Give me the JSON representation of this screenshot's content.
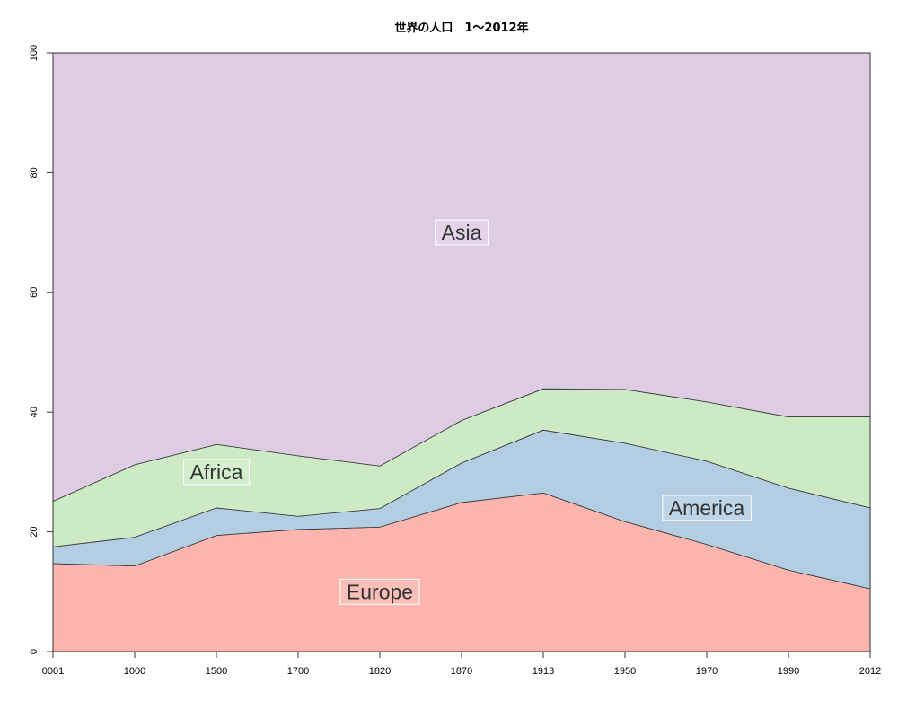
{
  "chart_data": {
    "type": "area",
    "stacked": true,
    "title": "世界の人口　1〜2012年",
    "xlabel": "",
    "ylabel": "",
    "ylim": [
      0,
      100
    ],
    "y_ticks": [
      "0",
      "20",
      "40",
      "60",
      "80",
      "100"
    ],
    "categories": [
      "0001",
      "1000",
      "1500",
      "1700",
      "1820",
      "1870",
      "1913",
      "1950",
      "1970",
      "1990",
      "2012"
    ],
    "grid": false,
    "legend": "none",
    "series": [
      {
        "name": "Europe",
        "color": "#FBB4AE",
        "values": [
          14.7,
          14.3,
          19.4,
          20.4,
          20.8,
          24.9,
          26.5,
          21.7,
          17.9,
          13.6,
          10.5
        ]
      },
      {
        "name": "America",
        "color": "#B3CDE3",
        "values": [
          2.8,
          4.8,
          4.6,
          2.2,
          3.1,
          6.6,
          10.5,
          13.1,
          13.9,
          13.7,
          13.5
        ]
      },
      {
        "name": "Africa",
        "color": "#CCEBC5",
        "values": [
          7.6,
          12.1,
          10.6,
          10.1,
          7.1,
          7.1,
          6.9,
          9.0,
          9.9,
          11.9,
          15.2
        ]
      },
      {
        "name": "Asia",
        "color": "#DECBE4",
        "values": [
          74.9,
          68.8,
          65.4,
          67.3,
          69.0,
          61.4,
          56.1,
          56.2,
          58.3,
          60.8,
          60.8
        ]
      }
    ],
    "annotations": [
      {
        "text": "Europe",
        "x": 4.0,
        "y": 10
      },
      {
        "text": "America",
        "x": 8.0,
        "y": 24
      },
      {
        "text": "Africa",
        "x": 2.0,
        "y": 30
      },
      {
        "text": "Asia",
        "x": 5.0,
        "y": 70
      }
    ]
  }
}
